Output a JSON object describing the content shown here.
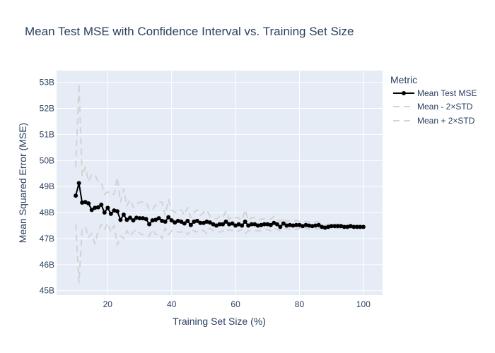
{
  "chart_data": {
    "type": "line",
    "title": "Mean Test MSE with Confidence Interval vs. Training Set Size",
    "xlabel": "Training Set Size (%)",
    "ylabel": "Mean Squared Error (MSE)",
    "xlim": [
      4,
      106
    ],
    "ylim": [
      44.83,
      53.45
    ],
    "x_ticks": [
      20,
      40,
      60,
      80,
      100
    ],
    "y_ticks": [
      45,
      46,
      47,
      48,
      49,
      50,
      51,
      52,
      53
    ],
    "y_tick_labels": [
      "45B",
      "46B",
      "47B",
      "48B",
      "49B",
      "50B",
      "51B",
      "52B",
      "53B"
    ],
    "grid": true,
    "legend": {
      "title": "Metric",
      "position": "top-right-outside",
      "entries": [
        "Mean Test MSE",
        "Mean - 2×STD",
        "Mean + 2×STD"
      ]
    },
    "series": [
      {
        "name": "Mean Test MSE",
        "color": "#000000",
        "style": "lines+markers",
        "x": [
          10,
          11,
          12,
          13,
          14,
          15,
          16,
          17,
          18,
          19,
          20,
          21,
          22,
          23,
          24,
          25,
          26,
          27,
          28,
          29,
          30,
          31,
          32,
          33,
          34,
          35,
          36,
          37,
          38,
          39,
          40,
          41,
          42,
          43,
          44,
          45,
          46,
          47,
          48,
          49,
          50,
          51,
          52,
          53,
          54,
          55,
          56,
          57,
          58,
          59,
          60,
          61,
          62,
          63,
          64,
          65,
          66,
          67,
          68,
          69,
          70,
          71,
          72,
          73,
          74,
          75,
          76,
          77,
          78,
          79,
          80,
          81,
          82,
          83,
          84,
          85,
          86,
          87,
          88,
          89,
          90,
          91,
          92,
          93,
          94,
          95,
          96,
          97,
          98,
          99,
          100
        ],
        "values": [
          48.65,
          49.13,
          48.38,
          48.4,
          48.35,
          48.1,
          48.18,
          48.2,
          48.3,
          48.0,
          48.18,
          47.95,
          48.08,
          48.05,
          47.72,
          47.92,
          47.72,
          47.8,
          47.7,
          47.8,
          47.78,
          47.78,
          47.75,
          47.55,
          47.7,
          47.72,
          47.78,
          47.68,
          47.65,
          47.82,
          47.7,
          47.62,
          47.68,
          47.65,
          47.58,
          47.68,
          47.52,
          47.65,
          47.68,
          47.6,
          47.6,
          47.65,
          47.62,
          47.55,
          47.5,
          47.55,
          47.55,
          47.65,
          47.55,
          47.58,
          47.5,
          47.55,
          47.5,
          47.65,
          47.5,
          47.55,
          47.55,
          47.5,
          47.52,
          47.55,
          47.55,
          47.52,
          47.6,
          47.55,
          47.45,
          47.58,
          47.5,
          47.52,
          47.5,
          47.52,
          47.52,
          47.48,
          47.52,
          47.5,
          47.48,
          47.5,
          47.52,
          47.45,
          47.42,
          47.45,
          47.48,
          47.48,
          47.48,
          47.48,
          47.45,
          47.45,
          47.48,
          47.45,
          47.45,
          47.45,
          47.45
        ]
      },
      {
        "name": "Mean - 2×STD",
        "color": "#d3d3d3",
        "style": "dash",
        "x": [
          10,
          11,
          12,
          13,
          14,
          15,
          16,
          17,
          18,
          19,
          20,
          21,
          22,
          23,
          24,
          25,
          26,
          27,
          28,
          29,
          30,
          31,
          32,
          33,
          34,
          35,
          36,
          37,
          38,
          39,
          40,
          41,
          42,
          43,
          44,
          45,
          46,
          47,
          48,
          49,
          50,
          51,
          52,
          53,
          54,
          55,
          56,
          57,
          58,
          59,
          60,
          61,
          62,
          63,
          64,
          65,
          66,
          67,
          68,
          69,
          70,
          71,
          72,
          73,
          74,
          75,
          76,
          77,
          78,
          79,
          80,
          81,
          82,
          83,
          84,
          85,
          86,
          87,
          88,
          89,
          90,
          91,
          92,
          93,
          94,
          95,
          96,
          97,
          98,
          99,
          100
        ],
        "values": [
          47.55,
          45.3,
          47.35,
          47.45,
          47.05,
          47.2,
          46.8,
          47.3,
          47.55,
          47.35,
          47.6,
          47.25,
          47.5,
          46.75,
          47.1,
          47.0,
          47.3,
          47.1,
          47.25,
          47.35,
          47.2,
          47.15,
          47.1,
          47.1,
          47.35,
          47.15,
          47.2,
          47.0,
          47.4,
          47.15,
          47.3,
          47.3,
          47.25,
          47.25,
          47.3,
          47.15,
          47.35,
          47.3,
          47.25,
          47.35,
          47.3,
          47.2,
          47.4,
          47.3,
          47.3,
          47.25,
          47.3,
          47.25,
          47.35,
          47.3,
          47.25,
          47.3,
          47.35,
          47.2,
          47.3,
          47.3,
          47.3,
          47.3,
          47.3,
          47.35,
          47.35,
          47.3,
          47.4,
          47.35,
          47.3,
          47.35,
          47.4,
          47.35,
          47.35,
          47.35,
          47.4,
          47.35,
          47.4,
          47.35,
          47.4,
          47.35,
          47.4,
          47.35,
          47.4,
          47.4,
          47.4,
          47.4,
          47.4,
          47.4,
          47.4,
          47.4,
          47.4,
          47.4,
          47.4,
          47.4,
          47.4
        ]
      },
      {
        "name": "Mean + 2×STD",
        "color": "#d3d3d3",
        "style": "dash",
        "x": [
          10,
          11,
          12,
          13,
          14,
          15,
          16,
          17,
          18,
          19,
          20,
          21,
          22,
          23,
          24,
          25,
          26,
          27,
          28,
          29,
          30,
          31,
          32,
          33,
          34,
          35,
          36,
          37,
          38,
          39,
          40,
          41,
          42,
          43,
          44,
          45,
          46,
          47,
          48,
          49,
          50,
          51,
          52,
          53,
          54,
          55,
          56,
          57,
          58,
          59,
          60,
          61,
          62,
          63,
          64,
          65,
          66,
          67,
          68,
          69,
          70,
          71,
          72,
          73,
          74,
          75,
          76,
          77,
          78,
          79,
          80,
          81,
          82,
          83,
          84,
          85,
          86,
          87,
          88,
          89,
          90,
          91,
          92,
          93,
          94,
          95,
          96,
          97,
          98,
          99,
          100
        ],
        "values": [
          49.75,
          52.95,
          49.4,
          49.75,
          49.2,
          49.45,
          49.45,
          49.2,
          49.15,
          48.7,
          48.8,
          48.7,
          48.7,
          49.35,
          48.4,
          48.9,
          48.25,
          48.5,
          48.2,
          48.3,
          48.4,
          48.4,
          48.4,
          48.1,
          48.1,
          48.3,
          48.4,
          48.4,
          47.9,
          48.5,
          48.1,
          48.0,
          48.1,
          48.1,
          47.9,
          48.2,
          47.8,
          48.0,
          48.1,
          47.9,
          48.0,
          48.1,
          47.85,
          47.8,
          47.75,
          47.85,
          47.8,
          48.05,
          47.75,
          47.85,
          47.8,
          47.8,
          47.7,
          48.1,
          47.7,
          47.8,
          47.8,
          47.7,
          47.75,
          47.75,
          47.75,
          47.75,
          47.85,
          47.75,
          47.65,
          47.8,
          47.65,
          47.7,
          47.65,
          47.7,
          47.65,
          47.65,
          47.65,
          47.65,
          47.6,
          47.65,
          47.65,
          47.55,
          47.5,
          47.55,
          47.55,
          47.55,
          47.55,
          47.55,
          47.5,
          47.5,
          47.55,
          47.5,
          47.5,
          47.5,
          47.5
        ]
      }
    ]
  }
}
